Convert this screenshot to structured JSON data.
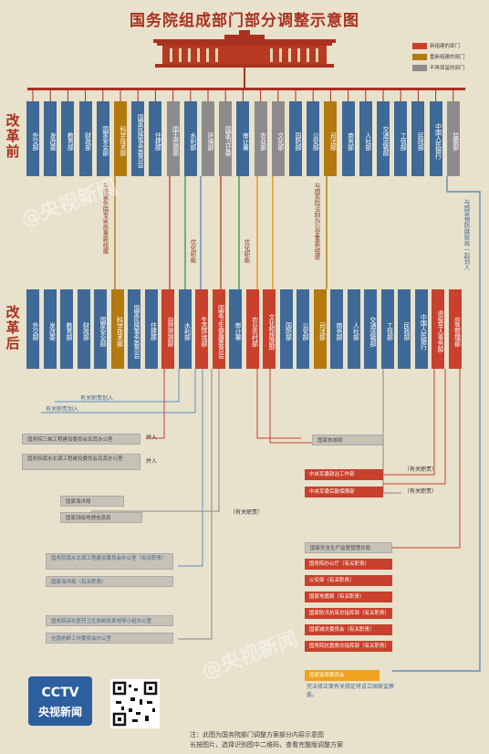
{
  "title": "国务院组成部门部分调整示意图",
  "legend": [
    {
      "label": "新组建的部门",
      "color": "#c8412c"
    },
    {
      "label": "重新组建的部门",
      "color": "#b37a10"
    },
    {
      "label": "不再保留的部门",
      "color": "#8c8c8c"
    }
  ],
  "era_before": "改革前",
  "era_after": "改革后",
  "before_depts": [
    {
      "name": "外交部",
      "kind": "blue"
    },
    {
      "name": "发改委",
      "kind": "blue"
    },
    {
      "name": "教育部",
      "kind": "blue"
    },
    {
      "name": "财政部",
      "kind": "blue"
    },
    {
      "name": "国家安全部",
      "kind": "blue"
    },
    {
      "name": "科学技术部",
      "kind": "orange"
    },
    {
      "name": "国家民族事务委员会",
      "kind": "blue"
    },
    {
      "name": "住建部",
      "kind": "blue"
    },
    {
      "name": "国土资源部",
      "kind": "gray"
    },
    {
      "name": "水利部",
      "kind": "blue"
    },
    {
      "name": "环保部",
      "kind": "gray"
    },
    {
      "name": "国家卫计委",
      "kind": "gray"
    },
    {
      "name": "审计署",
      "kind": "blue"
    },
    {
      "name": "农业部",
      "kind": "gray"
    },
    {
      "name": "文化部",
      "kind": "gray"
    },
    {
      "name": "国防部",
      "kind": "blue"
    },
    {
      "name": "公安部",
      "kind": "blue"
    },
    {
      "name": "司法部",
      "kind": "orange"
    },
    {
      "name": "商务部",
      "kind": "blue"
    },
    {
      "name": "人社部",
      "kind": "blue"
    },
    {
      "name": "交通运输部",
      "kind": "blue"
    },
    {
      "name": "工信部",
      "kind": "blue"
    },
    {
      "name": "民政部",
      "kind": "blue"
    },
    {
      "name": "中国人民银行",
      "kind": "blue"
    },
    {
      "name": "监察部",
      "kind": "gray"
    }
  ],
  "after_depts": [
    {
      "name": "外交部",
      "kind": "blue"
    },
    {
      "name": "发改委",
      "kind": "blue"
    },
    {
      "name": "教育部",
      "kind": "blue"
    },
    {
      "name": "财政部",
      "kind": "blue"
    },
    {
      "name": "国家安全部",
      "kind": "blue"
    },
    {
      "name": "科学技术部",
      "kind": "orange"
    },
    {
      "name": "国家民族事务委员会",
      "kind": "blue"
    },
    {
      "name": "住建部",
      "kind": "blue"
    },
    {
      "name": "自然资源部",
      "kind": "red"
    },
    {
      "name": "水利部",
      "kind": "blue"
    },
    {
      "name": "生态环境部",
      "kind": "red"
    },
    {
      "name": "国家卫生健康委员会",
      "kind": "red"
    },
    {
      "name": "审计署",
      "kind": "blue"
    },
    {
      "name": "农业农村部",
      "kind": "red"
    },
    {
      "name": "文化和旅游部",
      "kind": "red"
    },
    {
      "name": "国防部",
      "kind": "blue"
    },
    {
      "name": "公安部",
      "kind": "blue"
    },
    {
      "name": "司法部",
      "kind": "orange"
    },
    {
      "name": "商务部",
      "kind": "blue"
    },
    {
      "name": "人社部",
      "kind": "blue"
    },
    {
      "name": "交通运输部",
      "kind": "blue"
    },
    {
      "name": "工信部",
      "kind": "blue"
    },
    {
      "name": "民政部",
      "kind": "blue"
    },
    {
      "name": "中国人民银行",
      "kind": "blue"
    },
    {
      "name": "退役军人事务部",
      "kind": "red"
    },
    {
      "name": "应急管理部",
      "kind": "red"
    }
  ],
  "notes": {
    "sci": "与国家外国专家局重新组建",
    "justice": "与国务院法制办公室重新组建",
    "supervision": "与国家预防腐败局一起划入",
    "optimize1": "优化职能",
    "optimize2": "优化职能"
  },
  "merge_labels": {
    "rel1": "有关职责划入",
    "rel2": "有关职责划入",
    "merge1": "并入",
    "merge2": "并入",
    "rel3": "（有关职责）"
  },
  "left_boxes": [
    "国务院三峡工程建设委员会及其办公室",
    "国务院南水北调工程建设委员会及其办公室",
    "国家海洋局",
    "国家测绘地理信息局",
    "国务院南水北调工程建设委员会办公室（有关职责）",
    "国家海洋局（有关职责）",
    "国务院深化医药卫生体制改革领导小组办公室",
    "全国老龄工作委员会办公室"
  ],
  "right_boxes": {
    "tourism": "国家旅游局",
    "mil1": "中央军委政治工作部",
    "mil2": "中央军委后勤保障部",
    "mil_note1": "（有关职责）",
    "mil_note2": "（有关职责）",
    "safety": "国家安全生产监督管理总局",
    "emergency": [
      "国务院办公厅（有关职责）",
      "公安部（有关职责）",
      "国家地震局（有关职责）",
      "国家防汛抗旱总指挥部（有关职责）",
      "国家减灾委员会（有关职责）",
      "国务院抗震救灾指挥部（有关职责）"
    ],
    "supervision": "国家监察委员会",
    "supervision_note": "完法修正案有关规定将设立国家监察委。"
  },
  "logo": {
    "brand": "CCTV",
    "name": "央视新闻"
  },
  "footnote": [
    "注：此图为国务院部门调整方案部分内容示意图",
    "长按图片，选择识别图中二维码，查看完整版调整方案"
  ],
  "watermark": "@央视新闻"
}
